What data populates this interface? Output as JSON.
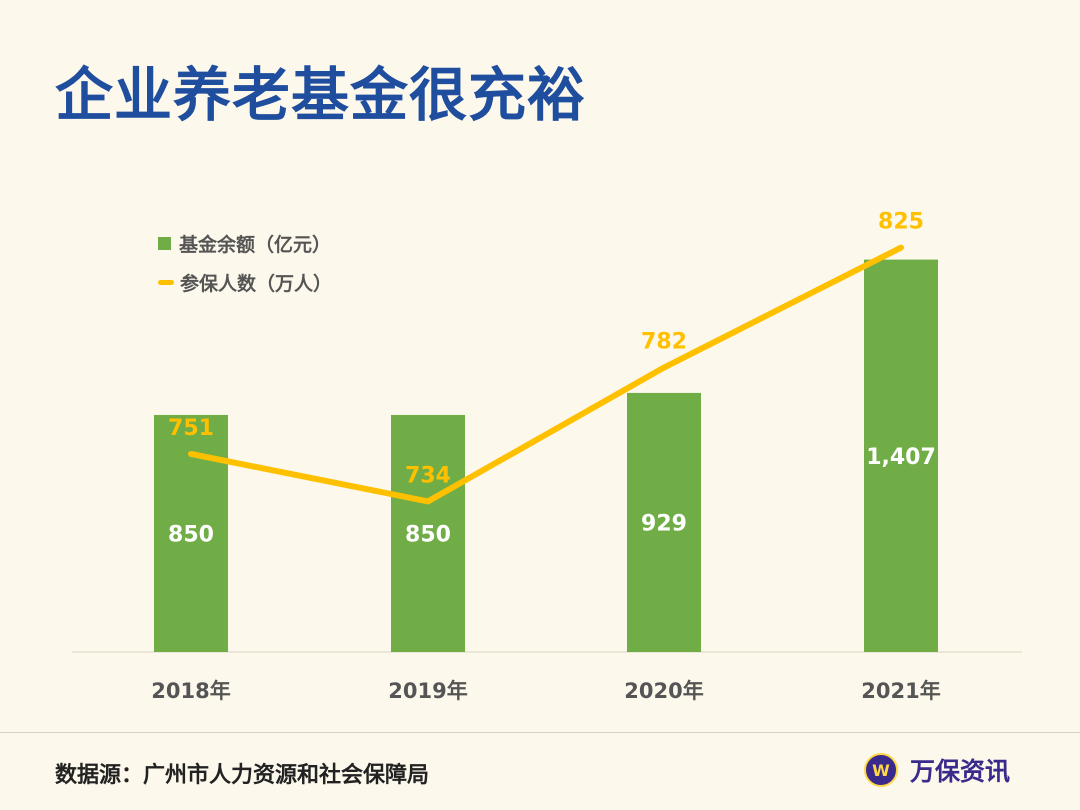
{
  "title": "企业养老基金很充裕",
  "chart_data": {
    "type": "bar+line",
    "title": "企业养老基金很充裕",
    "categories": [
      "2018年",
      "2019年",
      "2020年",
      "2021年"
    ],
    "series": [
      {
        "name": "基金余额（亿元）",
        "type": "bar",
        "values": [
          850,
          850,
          929,
          1407
        ],
        "labels": [
          "850",
          "850",
          "929",
          "1,407"
        ],
        "color": "#70ad47",
        "axis": "primary"
      },
      {
        "name": "参保人数（万人）",
        "type": "line",
        "values": [
          751,
          734,
          782,
          825
        ],
        "labels": [
          "751",
          "734",
          "782",
          "825"
        ],
        "color": "#ffc000",
        "axis": "secondary"
      }
    ],
    "ylim": [
      0,
      1800
    ],
    "y2lim": [
      680,
      860
    ],
    "axes_visible": false,
    "grid": false,
    "legend": "top-left"
  },
  "footer": {
    "source": "数据源：广州市人力资源和社会保障局",
    "brand": "万保资讯",
    "brand_logo_text": "W"
  }
}
